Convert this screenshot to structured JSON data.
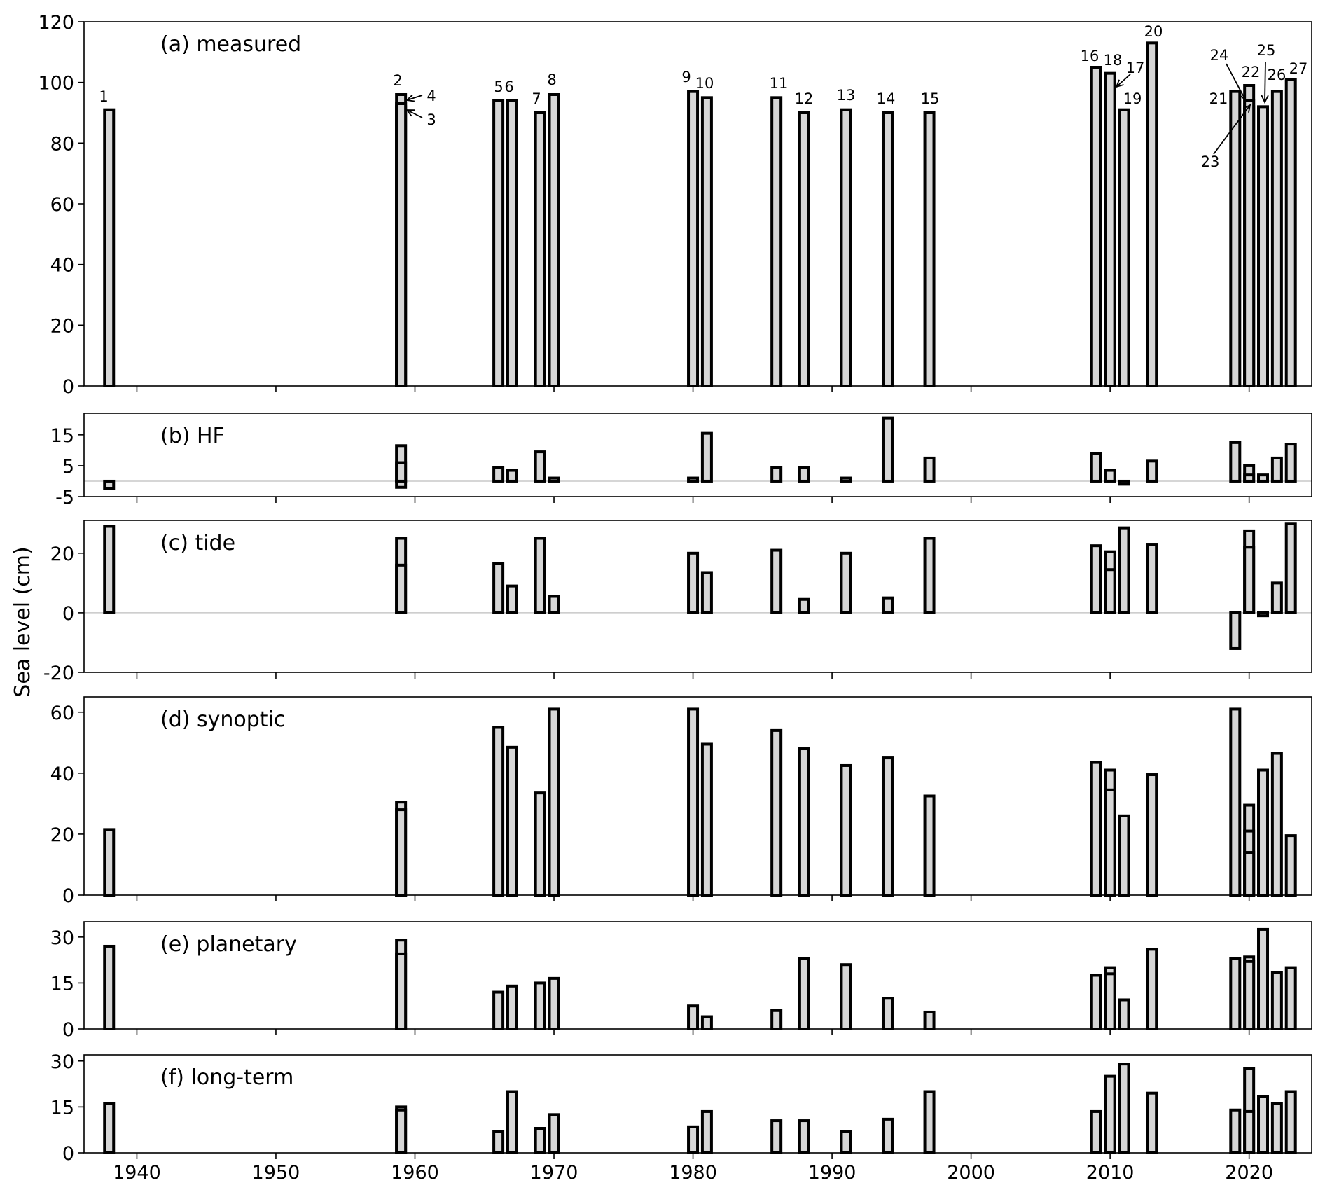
{
  "chart_data": {
    "type": "bar",
    "ylabel": "Sea level (cm)",
    "xticks": [
      1940,
      1950,
      1960,
      1970,
      1980,
      1990,
      2000,
      2010,
      2020
    ],
    "xlim": [
      1936.2,
      2024.5
    ],
    "event_labels": [
      "1",
      "2",
      "3",
      "4",
      "5",
      "6",
      "7",
      "8",
      "9",
      "10",
      "11",
      "12",
      "13",
      "14",
      "15",
      "16",
      "17",
      "18",
      "19",
      "20",
      "21",
      "22",
      "23",
      "24",
      "25",
      "26",
      "27"
    ],
    "panels": [
      {
        "title": "(a) measured",
        "ylim": [
          0,
          120
        ],
        "yticks": [
          "0",
          "20",
          "40",
          "60",
          "80",
          "100",
          "120"
        ],
        "ytick_values": [
          0,
          20,
          40,
          60,
          80,
          100,
          120
        ],
        "bars": [
          {
            "x": 1938.0,
            "v": 91,
            "event": "1"
          },
          {
            "x": 1959.0,
            "v": 96,
            "event": "2"
          },
          {
            "x": 1959.0,
            "v": 92,
            "event": "3"
          },
          {
            "x": 1959.0,
            "v": 93,
            "event": "4"
          },
          {
            "x": 1966.0,
            "v": 94,
            "event": "5"
          },
          {
            "x": 1967.0,
            "v": 94,
            "event": "6"
          },
          {
            "x": 1969.0,
            "v": 90,
            "event": "7"
          },
          {
            "x": 1970.0,
            "v": 96,
            "event": "8"
          },
          {
            "x": 1980.0,
            "v": 97,
            "event": "9"
          },
          {
            "x": 1981.0,
            "v": 95,
            "event": "10"
          },
          {
            "x": 1986.0,
            "v": 95,
            "event": "11"
          },
          {
            "x": 1988.0,
            "v": 90,
            "event": "12"
          },
          {
            "x": 1991.0,
            "v": 91,
            "event": "13"
          },
          {
            "x": 1994.0,
            "v": 90,
            "event": "14"
          },
          {
            "x": 1997.0,
            "v": 90,
            "event": "15"
          },
          {
            "x": 2009.0,
            "v": 105,
            "event": "16"
          },
          {
            "x": 2010.0,
            "v": 98,
            "event": "17"
          },
          {
            "x": 2010.0,
            "v": 103,
            "event": "18"
          },
          {
            "x": 2011.0,
            "v": 91,
            "event": "19"
          },
          {
            "x": 2013.0,
            "v": 113,
            "event": "20"
          },
          {
            "x": 2019.0,
            "v": 97,
            "event": "21"
          },
          {
            "x": 2020.0,
            "v": 99,
            "event": "22"
          },
          {
            "x": 2020.0,
            "v": 92,
            "event": "23"
          },
          {
            "x": 2020.0,
            "v": 94,
            "event": "24"
          },
          {
            "x": 2021.0,
            "v": 92,
            "event": "25"
          },
          {
            "x": 2022.0,
            "v": 97,
            "event": "26"
          },
          {
            "x": 2023.0,
            "v": 101,
            "event": "27"
          }
        ]
      },
      {
        "title": "(b) HF",
        "ylim": [
          -5,
          22
        ],
        "yticks": [
          "-5",
          "5",
          "15"
        ],
        "ytick_values": [
          -5,
          5,
          15
        ],
        "bars": [
          {
            "x": 1938.0,
            "v": -2.5
          },
          {
            "x": 1959.0,
            "v": 11.5
          },
          {
            "x": 1959.0,
            "v": 6
          },
          {
            "x": 1959.0,
            "v": -2
          },
          {
            "x": 1966.0,
            "v": 4.5
          },
          {
            "x": 1967.0,
            "v": 3.5
          },
          {
            "x": 1969.0,
            "v": 9.5
          },
          {
            "x": 1970.0,
            "v": 1
          },
          {
            "x": 1980.0,
            "v": 1
          },
          {
            "x": 1981.0,
            "v": 15.5
          },
          {
            "x": 1986.0,
            "v": 4.5
          },
          {
            "x": 1988.0,
            "v": 4.5
          },
          {
            "x": 1991.0,
            "v": 1
          },
          {
            "x": 1994.0,
            "v": 20.5
          },
          {
            "x": 1997.0,
            "v": 7.5
          },
          {
            "x": 2009.0,
            "v": 9
          },
          {
            "x": 2010.0,
            "v": 3.5
          },
          {
            "x": 2011.0,
            "v": -1
          },
          {
            "x": 2013.0,
            "v": 6.5
          },
          {
            "x": 2019.0,
            "v": 12.5
          },
          {
            "x": 2020.0,
            "v": 5
          },
          {
            "x": 2020.0,
            "v": 2
          },
          {
            "x": 2021.0,
            "v": 2
          },
          {
            "x": 2022.0,
            "v": 7.5
          },
          {
            "x": 2023.0,
            "v": 12
          }
        ]
      },
      {
        "title": "(c) tide",
        "ylim": [
          -20,
          31
        ],
        "yticks": [
          "-20",
          "0",
          "20"
        ],
        "ytick_values": [
          -20,
          0,
          20
        ],
        "bars": [
          {
            "x": 1938.0,
            "v": 29
          },
          {
            "x": 1959.0,
            "v": 25
          },
          {
            "x": 1959.0,
            "v": 16
          },
          {
            "x": 1966.0,
            "v": 16.5
          },
          {
            "x": 1967.0,
            "v": 9
          },
          {
            "x": 1969.0,
            "v": 25
          },
          {
            "x": 1970.0,
            "v": 5.5
          },
          {
            "x": 1980.0,
            "v": 20
          },
          {
            "x": 1981.0,
            "v": 13.5
          },
          {
            "x": 1986.0,
            "v": 21
          },
          {
            "x": 1988.0,
            "v": 4.5
          },
          {
            "x": 1991.0,
            "v": 20
          },
          {
            "x": 1994.0,
            "v": 5
          },
          {
            "x": 1997.0,
            "v": 25
          },
          {
            "x": 2009.0,
            "v": 22.5
          },
          {
            "x": 2010.0,
            "v": 20.5
          },
          {
            "x": 2010.0,
            "v": 14.5
          },
          {
            "x": 2011.0,
            "v": 28.5
          },
          {
            "x": 2013.0,
            "v": 23
          },
          {
            "x": 2019.0,
            "v": -12
          },
          {
            "x": 2020.0,
            "v": 27.5
          },
          {
            "x": 2020.0,
            "v": 22
          },
          {
            "x": 2021.0,
            "v": -1
          },
          {
            "x": 2022.0,
            "v": 10
          },
          {
            "x": 2023.0,
            "v": 30
          }
        ]
      },
      {
        "title": "(d) synoptic",
        "ylim": [
          0,
          65
        ],
        "yticks": [
          "0",
          "20",
          "40",
          "60"
        ],
        "ytick_values": [
          0,
          20,
          40,
          60
        ],
        "bars": [
          {
            "x": 1938.0,
            "v": 21.5
          },
          {
            "x": 1959.0,
            "v": 30.5
          },
          {
            "x": 1959.0,
            "v": 28
          },
          {
            "x": 1966.0,
            "v": 55
          },
          {
            "x": 1967.0,
            "v": 48.5
          },
          {
            "x": 1969.0,
            "v": 33.5
          },
          {
            "x": 1970.0,
            "v": 61
          },
          {
            "x": 1980.0,
            "v": 61
          },
          {
            "x": 1981.0,
            "v": 49.5
          },
          {
            "x": 1986.0,
            "v": 54
          },
          {
            "x": 1988.0,
            "v": 48
          },
          {
            "x": 1991.0,
            "v": 42.5
          },
          {
            "x": 1994.0,
            "v": 45
          },
          {
            "x": 1997.0,
            "v": 32.5
          },
          {
            "x": 2009.0,
            "v": 43.5
          },
          {
            "x": 2010.0,
            "v": 41
          },
          {
            "x": 2010.0,
            "v": 34.5
          },
          {
            "x": 2011.0,
            "v": 26
          },
          {
            "x": 2013.0,
            "v": 39.5
          },
          {
            "x": 2019.0,
            "v": 61
          },
          {
            "x": 2020.0,
            "v": 29.5
          },
          {
            "x": 2020.0,
            "v": 21
          },
          {
            "x": 2020.0,
            "v": 14
          },
          {
            "x": 2021.0,
            "v": 41
          },
          {
            "x": 2022.0,
            "v": 46.5
          },
          {
            "x": 2023.0,
            "v": 19.5
          }
        ]
      },
      {
        "title": "(e) planetary",
        "ylim": [
          0,
          35
        ],
        "yticks": [
          "0",
          "15",
          "30"
        ],
        "ytick_values": [
          0,
          15,
          30
        ],
        "bars": [
          {
            "x": 1938.0,
            "v": 27
          },
          {
            "x": 1959.0,
            "v": 29
          },
          {
            "x": 1959.0,
            "v": 24.5
          },
          {
            "x": 1966.0,
            "v": 12
          },
          {
            "x": 1967.0,
            "v": 14
          },
          {
            "x": 1969.0,
            "v": 15
          },
          {
            "x": 1970.0,
            "v": 16.5
          },
          {
            "x": 1980.0,
            "v": 7.5
          },
          {
            "x": 1981.0,
            "v": 4
          },
          {
            "x": 1986.0,
            "v": 6
          },
          {
            "x": 1988.0,
            "v": 23
          },
          {
            "x": 1991.0,
            "v": 21
          },
          {
            "x": 1994.0,
            "v": 10
          },
          {
            "x": 1997.0,
            "v": 5.5
          },
          {
            "x": 2009.0,
            "v": 17.5
          },
          {
            "x": 2010.0,
            "v": 20
          },
          {
            "x": 2010.0,
            "v": 18
          },
          {
            "x": 2011.0,
            "v": 9.5
          },
          {
            "x": 2013.0,
            "v": 26
          },
          {
            "x": 2019.0,
            "v": 23
          },
          {
            "x": 2020.0,
            "v": 23.5
          },
          {
            "x": 2020.0,
            "v": 22
          },
          {
            "x": 2021.0,
            "v": 32.5
          },
          {
            "x": 2022.0,
            "v": 18.5
          },
          {
            "x": 2023.0,
            "v": 20
          }
        ]
      },
      {
        "title": "(f) long-term",
        "ylim": [
          0,
          32
        ],
        "yticks": [
          "0",
          "15",
          "30"
        ],
        "ytick_values": [
          0,
          15,
          30
        ],
        "bars": [
          {
            "x": 1938.0,
            "v": 16
          },
          {
            "x": 1959.0,
            "v": 15
          },
          {
            "x": 1959.0,
            "v": 14
          },
          {
            "x": 1966.0,
            "v": 7
          },
          {
            "x": 1967.0,
            "v": 20
          },
          {
            "x": 1969.0,
            "v": 8
          },
          {
            "x": 1970.0,
            "v": 12.5
          },
          {
            "x": 1980.0,
            "v": 8.5
          },
          {
            "x": 1981.0,
            "v": 13.5
          },
          {
            "x": 1986.0,
            "v": 10.5
          },
          {
            "x": 1988.0,
            "v": 10.5
          },
          {
            "x": 1991.0,
            "v": 7
          },
          {
            "x": 1994.0,
            "v": 11
          },
          {
            "x": 1997.0,
            "v": 20
          },
          {
            "x": 2009.0,
            "v": 13.5
          },
          {
            "x": 2010.0,
            "v": 25
          },
          {
            "x": 2011.0,
            "v": 29
          },
          {
            "x": 2013.0,
            "v": 19.5
          },
          {
            "x": 2019.0,
            "v": 14
          },
          {
            "x": 2020.0,
            "v": 27.5
          },
          {
            "x": 2020.0,
            "v": 13.5
          },
          {
            "x": 2021.0,
            "v": 18.5
          },
          {
            "x": 2022.0,
            "v": 16
          },
          {
            "x": 2023.0,
            "v": 20
          }
        ]
      }
    ]
  }
}
